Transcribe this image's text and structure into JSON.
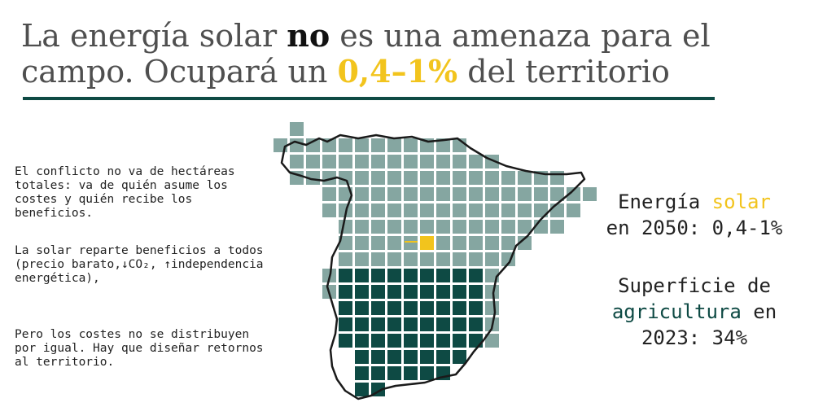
{
  "title": {
    "part1": "La energía solar ",
    "bold_no": "no",
    "part2": " es una amenaza para el",
    "part3": "campo. Ocupará un ",
    "highlight": "0,4–1%",
    "part4": " del territorio"
  },
  "left_text": {
    "p1": "El conflicto no va de hectáreas totales: va de quién asume los costes y quién recibe los beneficios.",
    "p2": "La solar reparte beneficios a todos (precio barato,↓CO₂, ↑independencia energética),",
    "p3": "Pero los costes no se distribuyen por igual. Hay que diseñar retornos al territorio."
  },
  "stats": {
    "solar_prefix": "Energía ",
    "solar_word": "solar",
    "solar_line2": "en 2050: 0,4-1%",
    "agri_line1": "Superficie de",
    "agri_word": "agricultura",
    "agri_suffix": " en",
    "agri_line3": "2023: 34%"
  },
  "colors": {
    "background": "#ffffff",
    "light_square": "#85a6a1",
    "dark_square": "#0e4a44",
    "solar_square": "#f2c41d",
    "rule": "#0e4a44",
    "outline": "#1a1a1a"
  },
  "map": {
    "region": "Spain",
    "solar_share": "0,4-1%",
    "agriculture_share": "34%"
  }
}
